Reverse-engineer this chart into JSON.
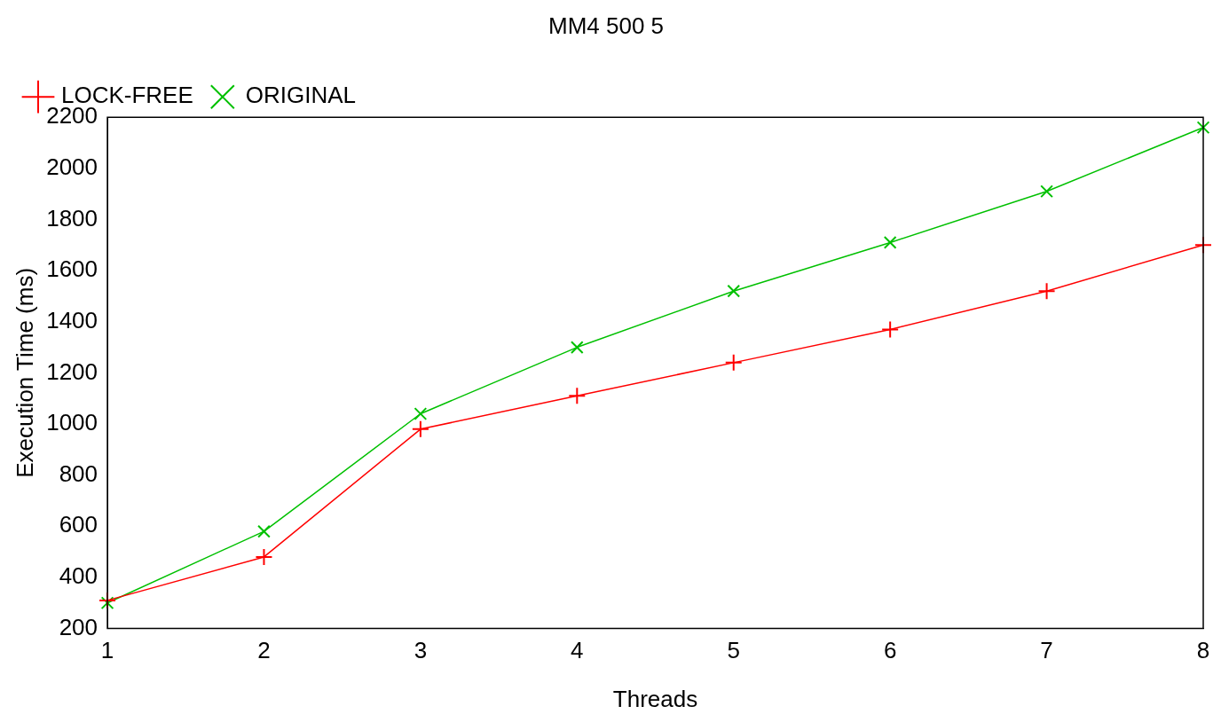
{
  "chart_data": {
    "type": "line",
    "title": "MM4 500 5",
    "xlabel": "Threads",
    "ylabel": "Execution Time (ms)",
    "x": [
      1,
      2,
      3,
      4,
      5,
      6,
      7,
      8
    ],
    "series": [
      {
        "name": "LOCK-FREE",
        "color": "#ff0000",
        "values": [
          310,
          480,
          980,
          1110,
          1240,
          1370,
          1520,
          1700
        ]
      },
      {
        "name": "ORIGINAL",
        "color": "#00c000",
        "values": [
          300,
          580,
          1040,
          1300,
          1520,
          1710,
          1910,
          2160
        ]
      }
    ],
    "xlim": [
      1,
      8
    ],
    "xticks": [
      1,
      2,
      3,
      4,
      5,
      6,
      7,
      8
    ],
    "ylim": [
      200,
      2200
    ],
    "yticks": [
      200,
      400,
      600,
      800,
      1000,
      1200,
      1400,
      1600,
      1800,
      2000,
      2200
    ],
    "grid": false,
    "legend": "top left",
    "marker": "cross",
    "line_style": "solid"
  }
}
